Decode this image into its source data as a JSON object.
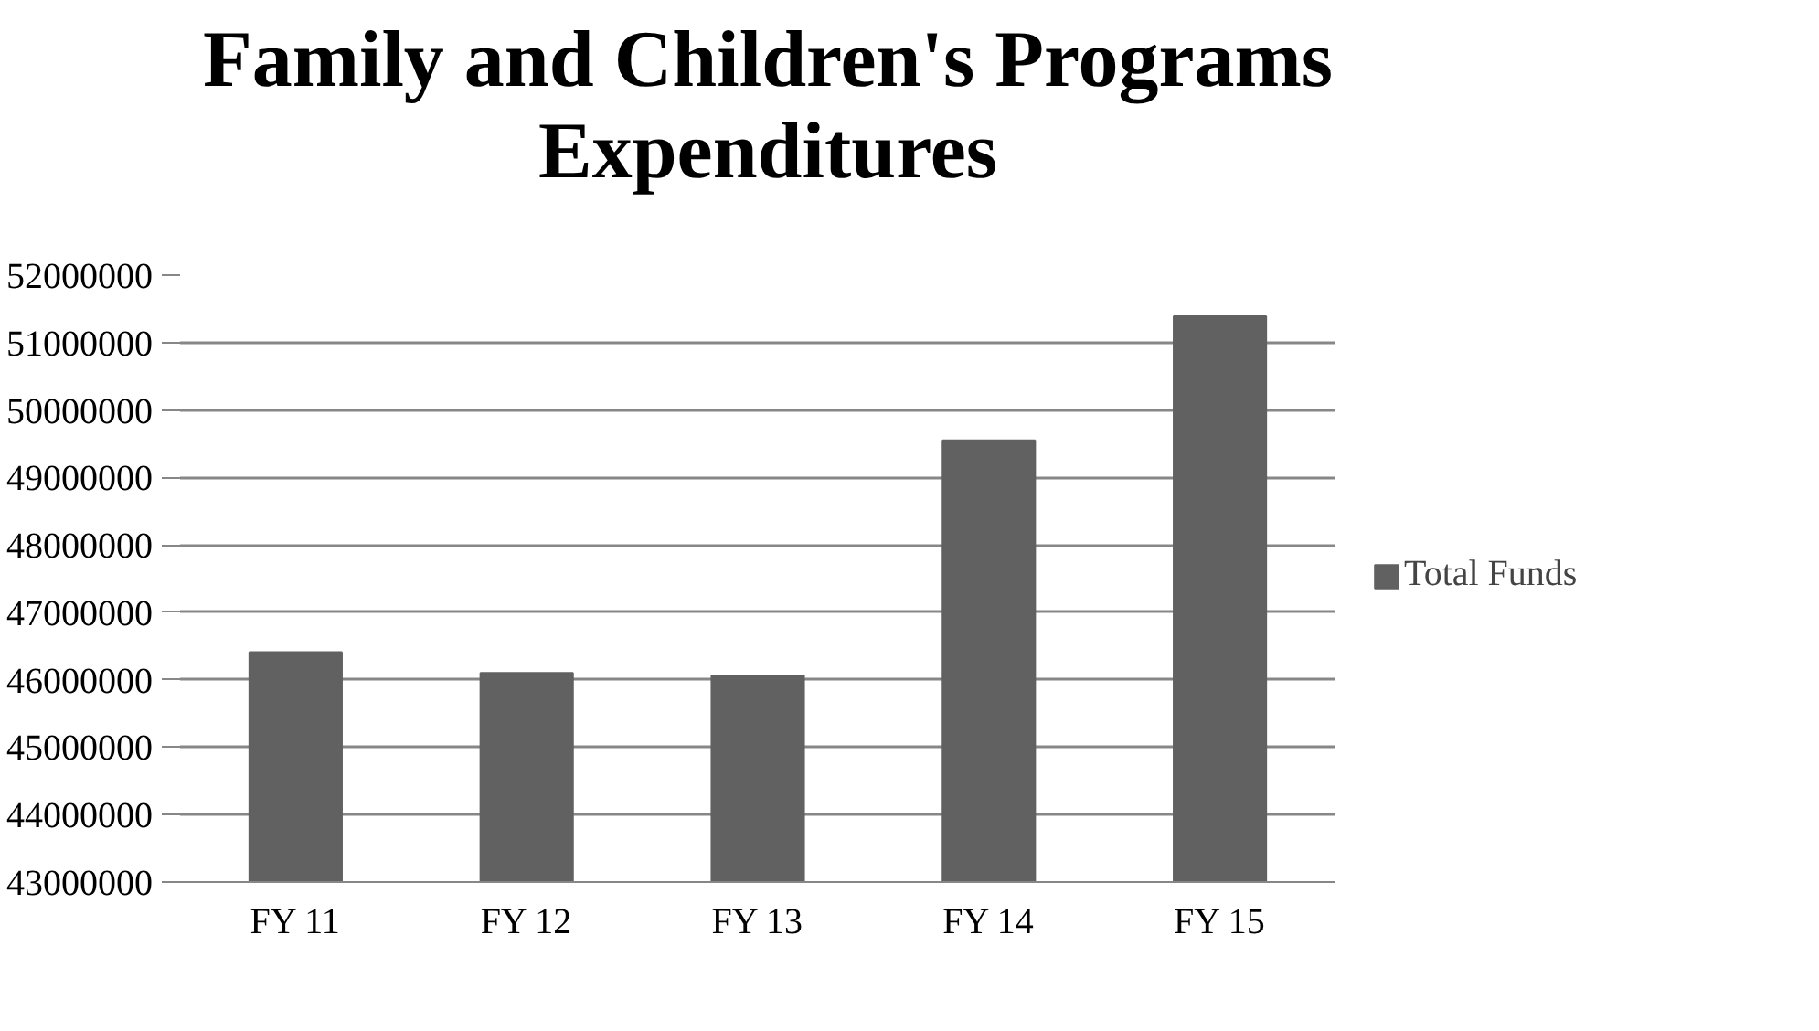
{
  "chart_data": {
    "type": "bar",
    "title": "Family and Children's Programs Expenditures",
    "categories": [
      "FY 11",
      "FY 12",
      "FY 13",
      "FY 14",
      "FY 15"
    ],
    "series": [
      {
        "name": "Total Funds",
        "color": "#616161",
        "values": [
          46410000,
          46100000,
          46060000,
          49550000,
          51390000
        ]
      }
    ],
    "ylim": [
      43000000,
      52000000
    ],
    "yticks": [
      43000000,
      44000000,
      45000000,
      46000000,
      47000000,
      48000000,
      49000000,
      50000000,
      51000000,
      52000000
    ],
    "grid": "y",
    "legend": "right"
  }
}
